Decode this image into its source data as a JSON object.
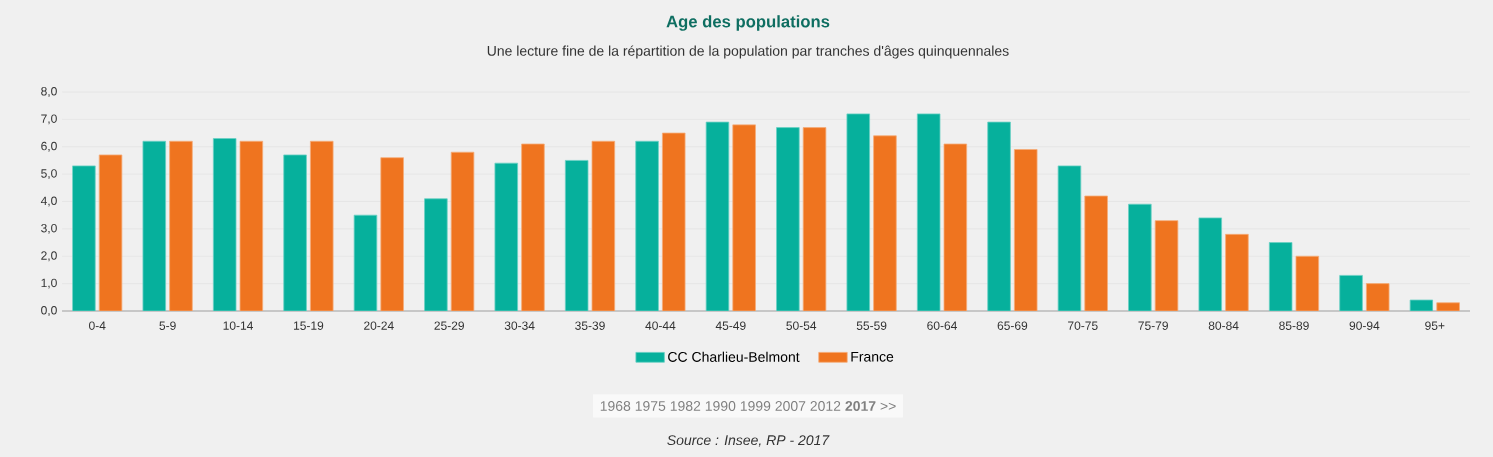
{
  "chart_data": {
    "type": "bar",
    "title": "Age des populations",
    "subtitle": "Une lecture fine de la répartition de la population par tranches d'âges quinquennales",
    "categories": [
      "0-4",
      "5-9",
      "10-14",
      "15-19",
      "20-24",
      "25-29",
      "30-34",
      "35-39",
      "40-44",
      "45-49",
      "50-54",
      "55-59",
      "60-64",
      "65-69",
      "70-75",
      "75-79",
      "80-84",
      "85-89",
      "90-94",
      "95+"
    ],
    "series": [
      {
        "name": "CC Charlieu-Belmont",
        "color": "#06b09c",
        "values": [
          5.3,
          6.2,
          6.3,
          5.7,
          3.5,
          4.1,
          5.4,
          5.5,
          6.2,
          6.9,
          6.7,
          7.2,
          7.2,
          6.9,
          5.3,
          3.9,
          3.4,
          2.5,
          1.3,
          0.4
        ]
      },
      {
        "name": "France",
        "color": "#ef741f",
        "values": [
          5.7,
          6.2,
          6.2,
          6.2,
          5.6,
          5.8,
          6.1,
          6.2,
          6.5,
          6.8,
          6.7,
          6.4,
          6.1,
          5.9,
          4.2,
          3.3,
          2.8,
          2.0,
          1.0,
          0.3
        ]
      }
    ],
    "ylim": [
      0,
      8
    ],
    "yticks": [
      {
        "value": 0,
        "label": "0,0"
      },
      {
        "value": 1,
        "label": "1,0"
      },
      {
        "value": 2,
        "label": "2,0"
      },
      {
        "value": 3,
        "label": "3,0"
      },
      {
        "value": 4,
        "label": "4,0"
      },
      {
        "value": 5,
        "label": "5,0"
      },
      {
        "value": 6,
        "label": "6,0"
      },
      {
        "value": 7,
        "label": "7,0"
      },
      {
        "value": 8,
        "label": "8,0"
      }
    ],
    "grid": "y",
    "legend": "bottom",
    "annotations": [
      "1968 1975 1982 1990 1999 2007 2012 **2017** >>",
      "Source : Insee, RP - 2017"
    ]
  }
}
